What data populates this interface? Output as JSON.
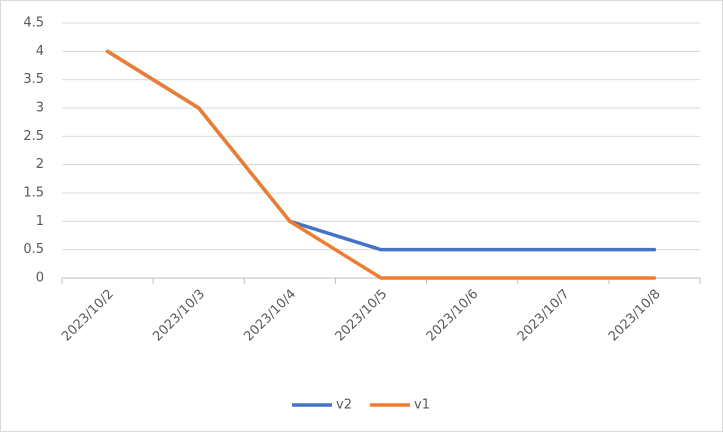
{
  "chart_data": {
    "type": "line",
    "categories": [
      "2023/10/2",
      "2023/10/3",
      "2023/10/4",
      "2023/10/5",
      "2023/10/6",
      "2023/10/7",
      "2023/10/8"
    ],
    "series": [
      {
        "name": "v2",
        "color": "#4472c4",
        "values": [
          4,
          3,
          1,
          0.5,
          0.5,
          0.5,
          0.5
        ]
      },
      {
        "name": "v1",
        "color": "#ed7d31",
        "values": [
          4,
          3,
          1,
          0,
          0,
          0,
          0
        ]
      }
    ],
    "ylim": [
      0,
      4.5
    ],
    "yticks": [
      0,
      0.5,
      1,
      1.5,
      2,
      2.5,
      3,
      3.5,
      4,
      4.5
    ],
    "grid": true,
    "legend": "bottom"
  }
}
